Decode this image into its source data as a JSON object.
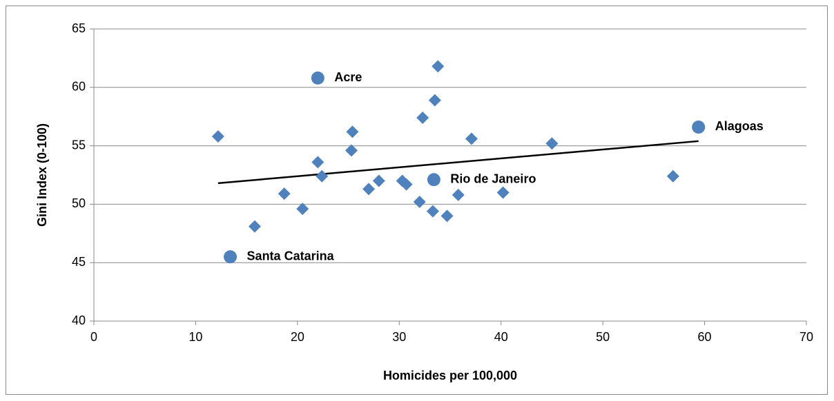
{
  "chart_data": {
    "type": "scatter",
    "xlabel": "Homicides per 100,000",
    "ylabel": "Gini Index (0-100)",
    "xlim": [
      0,
      70
    ],
    "xticks": [
      0,
      10,
      20,
      30,
      40,
      50,
      60,
      70
    ],
    "ylim": [
      40,
      65
    ],
    "yticks": [
      40,
      45,
      50,
      55,
      60,
      65
    ],
    "grid": true,
    "series": [
      {
        "color": "#4f81bd",
        "marker": "diamond",
        "x": [
          12.2,
          15.8,
          18.7,
          20.5,
          22.0,
          22.4,
          25.3,
          25.4,
          27.0,
          28.0,
          30.3,
          30.7,
          32.0,
          32.3,
          33.3,
          33.5,
          33.8,
          34.7,
          35.8,
          37.1,
          40.2,
          45.0,
          56.9
        ],
        "values": [
          55.8,
          48.1,
          50.9,
          49.6,
          53.6,
          52.4,
          54.6,
          56.2,
          51.3,
          52.0,
          52.0,
          51.7,
          50.2,
          57.4,
          49.4,
          58.9,
          61.8,
          49.0,
          50.8,
          55.6,
          51.0,
          55.2,
          52.4
        ]
      },
      {
        "color": "#4f81bd",
        "marker": "circle",
        "x": [
          22.0,
          59.4,
          33.4,
          13.4
        ],
        "values": [
          60.8,
          56.6,
          52.1,
          45.5
        ],
        "labels": [
          "Acre",
          "Alagoas",
          "Rio de Janeiro",
          "Santa Catarina"
        ]
      }
    ],
    "trendline": {
      "color": "#000000",
      "x": [
        12.2,
        59.4
      ],
      "values": [
        51.8,
        55.4
      ]
    }
  }
}
